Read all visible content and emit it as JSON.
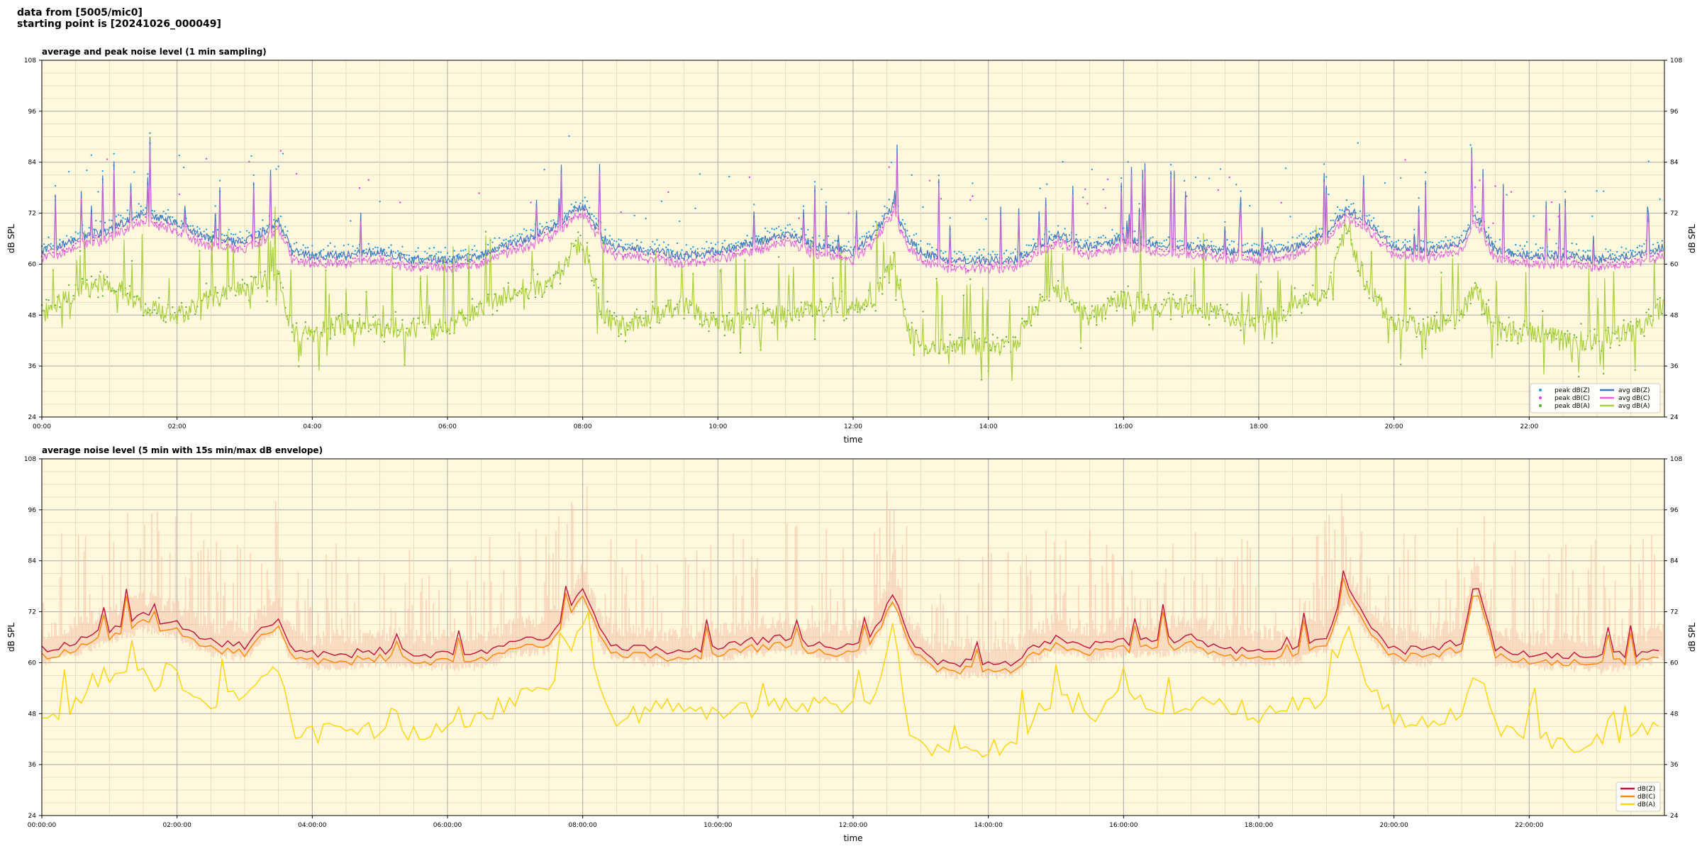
{
  "header": {
    "line1": "data from [5005/mic0]",
    "line2": "starting point is [20241026_000049]"
  },
  "colors": {
    "plot_bg": "#fff8dc",
    "peak_z": "#1f9ee0",
    "peak_c": "#e040e0",
    "peak_a": "#5ab030",
    "avg_z": "#3a78c0",
    "avg_c": "#e060d8",
    "avg_a": "#a8d040",
    "db_z": "#c0103c",
    "db_c": "#ff8800",
    "db_a": "#ffd400",
    "envelope": "#f5b8a0"
  },
  "chart_data": [
    {
      "type": "scatter+line",
      "title": "average and peak noise level (1 min sampling)",
      "xlabel": "time",
      "ylabel": "dB SPL",
      "ylim": [
        24,
        108
      ],
      "yticks": [
        "24",
        "36",
        "48",
        "60",
        "72",
        "84",
        "96",
        "108"
      ],
      "xticks": [
        "00:00",
        "02:00",
        "04:00",
        "06:00",
        "08:00",
        "10:00",
        "12:00",
        "14:00",
        "16:00",
        "18:00",
        "20:00",
        "22:00"
      ],
      "xlim_hours": [
        0,
        24
      ],
      "grid": true,
      "legend_position": "bottom-right",
      "legend": [
        "peak dB(Z)",
        "peak dB(C)",
        "peak dB(A)",
        "avg dB(Z)",
        "avg dB(C)",
        "avg dB(A)"
      ],
      "anchor_hours": [
        0,
        0.5,
        1.0,
        1.5,
        2.0,
        2.5,
        3.0,
        3.5,
        3.7,
        4.0,
        4.5,
        5.0,
        5.5,
        6.0,
        6.5,
        7.0,
        7.5,
        8.0,
        8.3,
        8.5,
        9.0,
        9.5,
        10.0,
        10.5,
        11.0,
        11.5,
        12.0,
        12.3,
        12.6,
        12.8,
        13.0,
        13.3,
        13.6,
        14.0,
        14.4,
        14.6,
        15.0,
        15.5,
        16.0,
        16.5,
        17.0,
        17.5,
        18.0,
        18.5,
        19.0,
        19.3,
        19.6,
        20.0,
        20.5,
        21.0,
        21.2,
        21.5,
        22.0,
        22.5,
        23.0,
        23.5,
        24.0
      ],
      "avg_z_anchors": [
        63,
        66,
        68,
        72,
        70,
        66,
        65,
        70,
        63,
        62,
        62,
        63,
        61,
        61,
        62,
        65,
        68,
        74,
        66,
        64,
        63,
        62,
        63,
        65,
        67,
        64,
        63,
        67,
        74,
        66,
        63,
        61,
        61,
        61,
        61,
        63,
        67,
        64,
        66,
        65,
        64,
        63,
        63,
        64,
        67,
        73,
        70,
        64,
        63,
        65,
        72,
        63,
        62,
        62,
        61,
        62,
        64
      ],
      "avg_a_anchors": [
        48,
        53,
        56,
        50,
        48,
        52,
        54,
        57,
        44,
        44,
        46,
        45,
        45,
        45,
        50,
        54,
        55,
        66,
        48,
        45,
        48,
        50,
        45,
        48,
        48,
        50,
        50,
        51,
        62,
        46,
        40,
        41,
        41,
        41,
        40,
        48,
        55,
        47,
        52,
        50,
        50,
        48,
        46,
        50,
        53,
        68,
        55,
        46,
        45,
        48,
        55,
        44,
        44,
        42,
        42,
        44,
        50
      ]
    },
    {
      "type": "line",
      "title": "average noise level (5 min with 15s min/max dB envelope)",
      "xlabel": "time",
      "ylabel": "dB SPL",
      "ylim": [
        24,
        108
      ],
      "yticks": [
        "24",
        "36",
        "48",
        "60",
        "72",
        "84",
        "96",
        "108"
      ],
      "xticks": [
        "00:00:00",
        "02:00:00",
        "04:00:00",
        "06:00:00",
        "08:00:00",
        "10:00:00",
        "12:00:00",
        "14:00:00",
        "16:00:00",
        "18:00:00",
        "20:00:00",
        "22:00:00"
      ],
      "xlim_hours": [
        0,
        24
      ],
      "grid": true,
      "legend_position": "bottom-right",
      "legend": [
        "dB(Z)",
        "dB(C)",
        "dB(A)"
      ],
      "anchor_hours": [
        0,
        0.5,
        1.0,
        1.5,
        2.0,
        2.5,
        3.0,
        3.5,
        3.7,
        4.0,
        4.5,
        5.0,
        5.5,
        6.0,
        6.5,
        7.0,
        7.5,
        8.0,
        8.3,
        8.5,
        9.0,
        9.5,
        10.0,
        10.5,
        11.0,
        11.5,
        12.0,
        12.3,
        12.6,
        12.8,
        13.0,
        13.3,
        13.6,
        14.0,
        14.4,
        14.6,
        15.0,
        15.5,
        16.0,
        16.5,
        17.0,
        17.5,
        18.0,
        18.5,
        19.0,
        19.3,
        19.6,
        20.0,
        20.5,
        21.0,
        21.2,
        21.5,
        22.0,
        22.5,
        23.0,
        23.5,
        24.0
      ],
      "db_z_anchors": [
        63,
        65,
        68,
        71,
        69,
        65,
        64,
        71,
        63,
        62,
        62,
        63,
        62,
        62,
        62,
        65,
        66,
        78,
        66,
        64,
        63,
        63,
        64,
        65,
        66,
        64,
        64,
        67,
        77,
        67,
        63,
        60,
        60,
        60,
        60,
        63,
        66,
        64,
        65,
        65,
        66,
        63,
        63,
        63,
        66,
        78,
        70,
        63,
        63,
        65,
        80,
        63,
        62,
        62,
        61,
        62,
        64
      ],
      "db_c_anchors": [
        61,
        63,
        66,
        69,
        67,
        63,
        62,
        69,
        61,
        61,
        61,
        62,
        61,
        61,
        61,
        63,
        64,
        76,
        64,
        62,
        61,
        61,
        62,
        63,
        64,
        62,
        62,
        65,
        75,
        65,
        60,
        57,
        57,
        57,
        57,
        61,
        64,
        62,
        63,
        63,
        64,
        61,
        61,
        61,
        64,
        76,
        68,
        61,
        61,
        63,
        78,
        61,
        60,
        60,
        59,
        60,
        62
      ],
      "db_a_anchors": [
        46,
        50,
        55,
        57,
        52,
        50,
        53,
        58,
        44,
        43,
        45,
        44,
        44,
        44,
        47,
        52,
        53,
        69,
        50,
        46,
        49,
        50,
        47,
        49,
        50,
        50,
        50,
        51,
        70,
        46,
        40,
        40,
        40,
        40,
        40,
        46,
        52,
        47,
        53,
        50,
        50,
        50,
        48,
        50,
        52,
        68,
        56,
        46,
        46,
        48,
        60,
        45,
        44,
        41,
        41,
        42,
        48
      ]
    }
  ]
}
